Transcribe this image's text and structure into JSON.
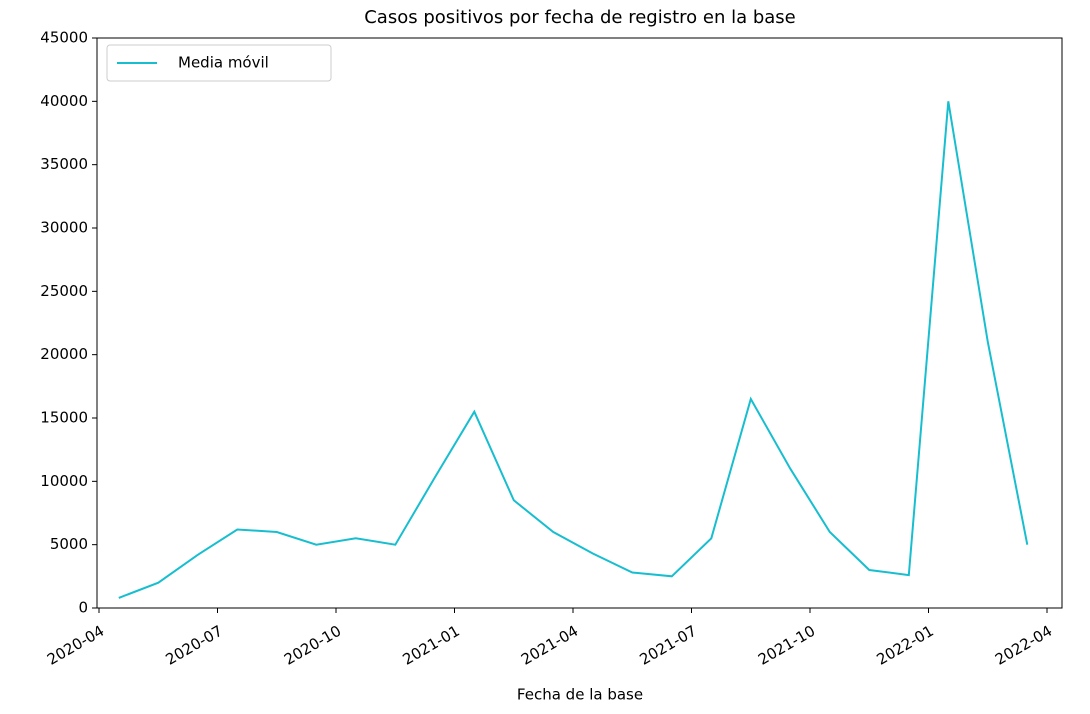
{
  "chart_data": {
    "type": "line",
    "title": "Casos positivos por fecha de registro en la base",
    "x_label": "Fecha de la base",
    "x": [
      "2020-04",
      "2020-05",
      "2020-06",
      "2020-07",
      "2020-08",
      "2020-09",
      "2020-10",
      "2020-11",
      "2020-12",
      "2021-01",
      "2021-02",
      "2021-03",
      "2021-04",
      "2021-05",
      "2021-06",
      "2021-07",
      "2021-08",
      "2021-09",
      "2021-10",
      "2021-11",
      "2021-12",
      "2022-01",
      "2022-02",
      "2022-03"
    ],
    "series": [
      {
        "name": "Media móvil",
        "color": "#17becf",
        "values": [
          800,
          2000,
          4200,
          6200,
          6000,
          5000,
          5500,
          5000,
          10300,
          15500,
          8500,
          6000,
          4300,
          2800,
          2500,
          5500,
          16500,
          11000,
          6000,
          3000,
          2600,
          40000,
          21000,
          5000
        ]
      }
    ],
    "xlim": [
      "2020-04",
      "2022-04"
    ],
    "xticks": [
      "2020-04",
      "2020-07",
      "2020-10",
      "2021-01",
      "2021-04",
      "2021-07",
      "2021-10",
      "2022-01",
      "2022-04"
    ],
    "ylim": [
      0,
      45000
    ],
    "yticks": [
      0,
      5000,
      10000,
      15000,
      20000,
      25000,
      30000,
      35000,
      40000,
      45000
    ],
    "legend": "upper left"
  }
}
